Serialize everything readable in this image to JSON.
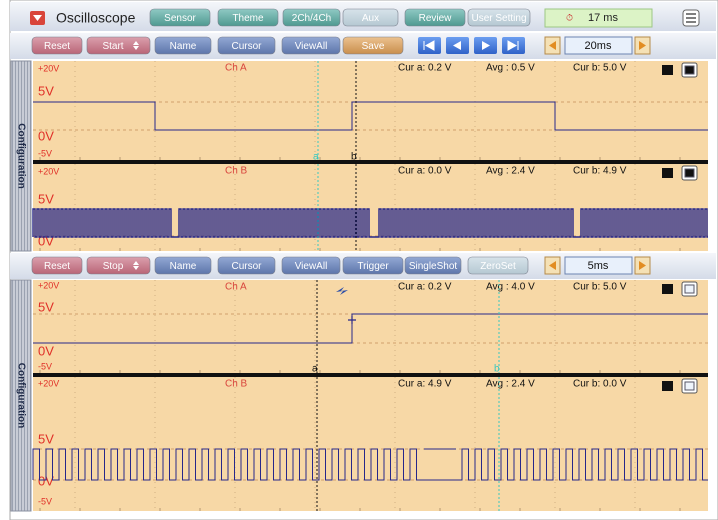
{
  "header": {
    "title": "Oscilloscope",
    "tabs": [
      "Sensor",
      "Theme",
      "2Ch/4Ch",
      "Aux",
      "Review",
      "User Setting"
    ],
    "timer": "17 ms"
  },
  "panels": [
    {
      "controls": [
        "Reset",
        "Start",
        "Name",
        "Cursor",
        "ViewAll",
        "Save"
      ],
      "timebase": "20ms",
      "sidebar": "Configuration",
      "channels": [
        {
          "name": "Ch A",
          "scale": [
            "+20V",
            "5V",
            "0V",
            "-5V"
          ],
          "readouts": [
            "Cur a: 0.2 V",
            "Avg : 0.5 V",
            "Cur b: 5.0 V"
          ],
          "cursors": [
            "a",
            "b"
          ]
        },
        {
          "name": "Ch B",
          "scale": [
            "+20V",
            "5V",
            "0V"
          ],
          "readouts": [
            "Cur a: 0.0 V",
            "Avg : 2.4 V",
            "Cur b: 4.9 V"
          ]
        }
      ]
    },
    {
      "controls": [
        "Reset",
        "Stop",
        "Name",
        "Cursor",
        "ViewAll",
        "Trigger",
        "SingleShot",
        "ZeroSet"
      ],
      "timebase": "5ms",
      "sidebar": "Configuration",
      "channels": [
        {
          "name": "Ch A",
          "scale": [
            "+20V",
            "5V",
            "0V",
            "-5V"
          ],
          "readouts": [
            "Cur a: 0.2 V",
            "Avg : 4.0 V",
            "Cur b: 5.0 V"
          ],
          "cursors": [
            "a",
            "b"
          ]
        },
        {
          "name": "Ch B",
          "scale": [
            "+20V",
            "5V",
            "0V",
            "-5V"
          ],
          "readouts": [
            "Cur a: 4.9 V",
            "Avg : 2.4 V",
            "Cur b: 0.0 V"
          ]
        }
      ]
    }
  ]
}
